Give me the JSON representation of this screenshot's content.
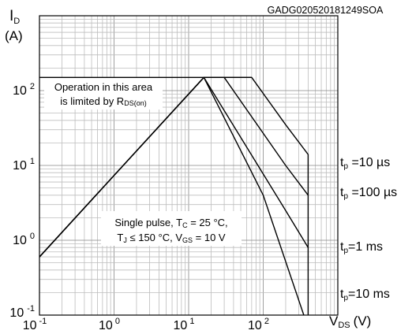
{
  "chart_data": {
    "type": "line",
    "scale": "log-log",
    "title_code": "GADG020520181249SOA",
    "ylabel": {
      "main": "I",
      "sub": "D",
      "unit": "(A)"
    },
    "xlabel": {
      "main": "V",
      "sub": "DS",
      "unit": "(V)"
    },
    "xlim": [
      0.1,
      1000
    ],
    "ylim": [
      0.1,
      1000
    ],
    "grid": true,
    "x_ticks": [
      {
        "base": "10",
        "exp": "-1",
        "value": 0.1
      },
      {
        "base": "10",
        "exp": "0",
        "value": 1
      },
      {
        "base": "10",
        "exp": "1",
        "value": 10
      },
      {
        "base": "10",
        "exp": "2",
        "value": 100
      }
    ],
    "y_ticks": [
      {
        "base": "10",
        "exp": "-1",
        "value": 0.1
      },
      {
        "base": "10",
        "exp": "0",
        "value": 1
      },
      {
        "base": "10",
        "exp": "1",
        "value": 10
      },
      {
        "base": "10",
        "exp": "2",
        "value": 100
      }
    ],
    "annotations": {
      "rds_area": {
        "line1": "Operation in this area",
        "line2_pre": "is limited by R",
        "line2_sub": "DS(on)"
      },
      "conditions": {
        "line1_pre": "Single pulse, T",
        "line1_sub": "C",
        "line1_post": " = 25 °C,",
        "line2_a": "T",
        "line2_a_sub": "J",
        "line2_b": " ≤ 150 °C, V",
        "line2_b_sub": "GS",
        "line2_c": " = 10 V"
      }
    },
    "series": [
      {
        "label": {
          "pre": "t",
          "sub": "p",
          "post": " =10 µs"
        },
        "points": [
          [
            0.1,
            0.6
          ],
          [
            16,
            150
          ],
          [
            30,
            150
          ],
          [
            70,
            150
          ],
          [
            200,
            35
          ],
          [
            400,
            14
          ],
          [
            400,
            4
          ]
        ]
      },
      {
        "label": {
          "pre": "t",
          "sub": "p",
          "post": " =100 µs"
        },
        "points": [
          [
            0.1,
            0.6
          ],
          [
            16,
            150
          ],
          [
            30,
            150
          ],
          [
            200,
            10
          ],
          [
            400,
            4
          ],
          [
            400,
            0.8
          ]
        ]
      },
      {
        "label": {
          "pre": "t",
          "sub": "p",
          "post": "=1 ms"
        },
        "points": [
          [
            0.1,
            0.6
          ],
          [
            16,
            150
          ],
          [
            200,
            2.5
          ],
          [
            400,
            0.8
          ],
          [
            400,
            0.1
          ]
        ]
      },
      {
        "label": {
          "pre": "t",
          "sub": "p",
          "post": "=10 ms"
        },
        "points": [
          [
            0.1,
            0.6
          ],
          [
            16,
            150
          ],
          [
            100,
            4
          ],
          [
            350,
            0.1
          ]
        ]
      }
    ],
    "current_limit": {
      "value": 150,
      "x_from": 0.1,
      "x_to": 70
    }
  }
}
